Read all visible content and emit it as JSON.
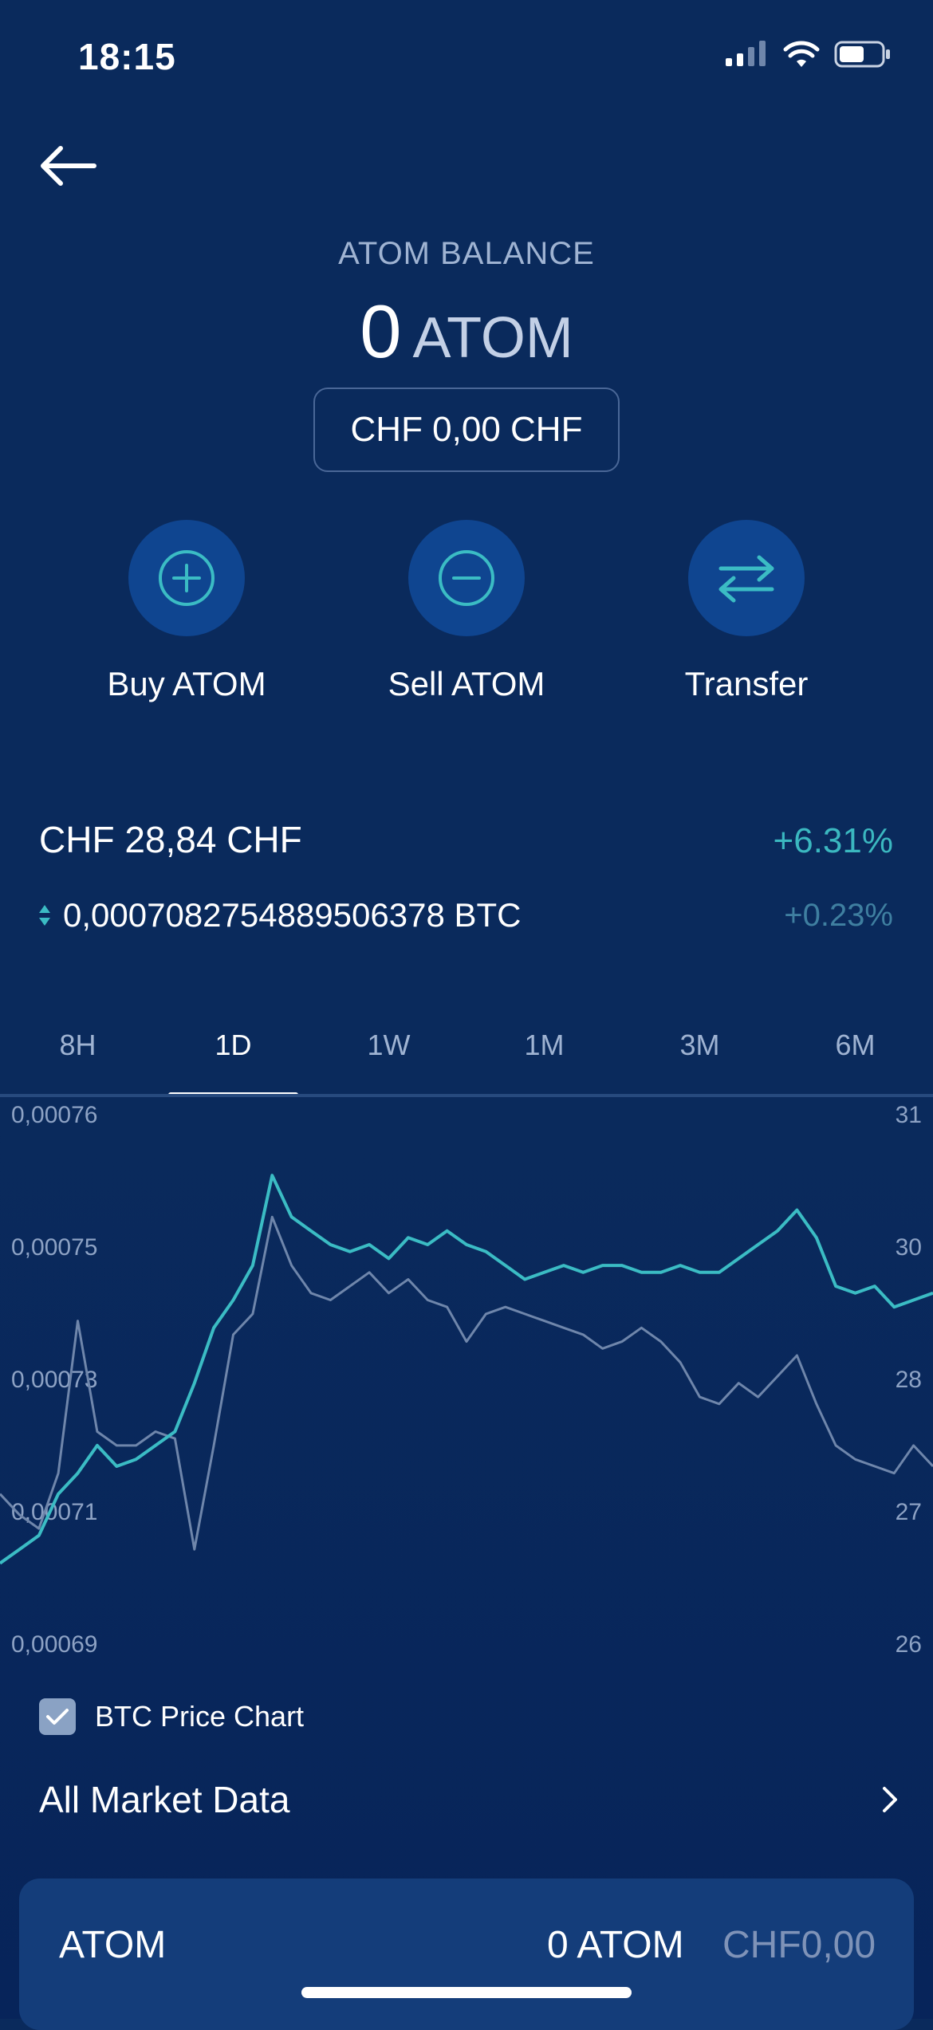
{
  "status_bar": {
    "time": "18:15"
  },
  "header": {
    "back_icon": "arrow-left-icon"
  },
  "balance": {
    "label": "ATOM BALANCE",
    "amount": "0",
    "unit": "ATOM",
    "fiat": "CHF 0,00 CHF"
  },
  "actions": [
    {
      "label": "Buy ATOM",
      "icon": "plus-circle-icon"
    },
    {
      "label": "Sell ATOM",
      "icon": "minus-circle-icon"
    },
    {
      "label": "Transfer",
      "icon": "swap-arrows-icon"
    }
  ],
  "price": {
    "fiat": "CHF 28,84 CHF",
    "fiat_change": "+6.31%",
    "btc": "0,00070827548895063​78 BTC",
    "btc_change": "+0.23%"
  },
  "tabs": [
    "8H",
    "1D",
    "1W",
    "1M",
    "3M",
    "6M"
  ],
  "active_tab": "1D",
  "chart_data": {
    "type": "line",
    "left_axis_ticks": [
      "0,00076",
      "0,00075",
      "0,00073",
      "0,00071",
      "0,00069"
    ],
    "right_axis_ticks": [
      "31",
      "30",
      "28",
      "27",
      "26"
    ],
    "left_ylim": [
      0.00069,
      0.00076
    ],
    "right_ylim": [
      26,
      31
    ],
    "x": [
      0,
      1,
      2,
      3,
      4,
      5,
      6,
      7,
      8,
      9,
      10,
      11,
      12,
      13,
      14,
      15,
      16,
      17,
      18,
      19,
      20,
      21,
      22,
      23,
      24,
      25,
      26,
      27,
      28,
      29,
      30,
      31,
      32,
      33,
      34,
      35,
      36,
      37,
      38,
      39,
      40,
      41,
      42,
      43,
      44,
      45,
      46,
      47,
      48
    ],
    "series": [
      {
        "color": "#3bbcc4",
        "values": [
          0.000695,
          0.000697,
          0.000699,
          0.000705,
          0.000708,
          0.000712,
          0.000709,
          0.00071,
          0.000712,
          0.000714,
          0.000721,
          0.000729,
          0.000733,
          0.000738,
          0.000751,
          0.000745,
          0.000743,
          0.000741,
          0.00074,
          0.000741,
          0.000739,
          0.000742,
          0.000741,
          0.000743,
          0.000741,
          0.00074,
          0.000738,
          0.000736,
          0.000737,
          0.000738,
          0.000737,
          0.000738,
          0.000738,
          0.000737,
          0.000737,
          0.000738,
          0.000737,
          0.000737,
          0.000739,
          0.000741,
          0.000743,
          0.000746,
          0.000742,
          0.000735,
          0.000734,
          0.000735,
          0.000732,
          0.000733,
          0.000734
        ]
      },
      {
        "color": "#6f86ab",
        "values": [
          0.000705,
          0.000702,
          0.0007,
          0.000708,
          0.00073,
          0.000714,
          0.000712,
          0.000712,
          0.000714,
          0.000713,
          0.000697,
          0.000712,
          0.000728,
          0.000731,
          0.000745,
          0.000738,
          0.000734,
          0.000733,
          0.000735,
          0.000737,
          0.000734,
          0.000736,
          0.000733,
          0.000732,
          0.000727,
          0.000731,
          0.000732,
          0.000731,
          0.00073,
          0.000729,
          0.000728,
          0.000726,
          0.000727,
          0.000729,
          0.000727,
          0.000724,
          0.000719,
          0.000718,
          0.000721,
          0.000719,
          0.000722,
          0.000725,
          0.000718,
          0.000712,
          0.00071,
          0.000709,
          0.000708,
          0.000712,
          0.000709
        ]
      }
    ],
    "legend_checkbox": "BTC Price Chart"
  },
  "market": {
    "label": "All Market Data"
  },
  "bottom": {
    "name": "ATOM",
    "amount": "0 ATOM",
    "fiat": "CHF0,00"
  }
}
